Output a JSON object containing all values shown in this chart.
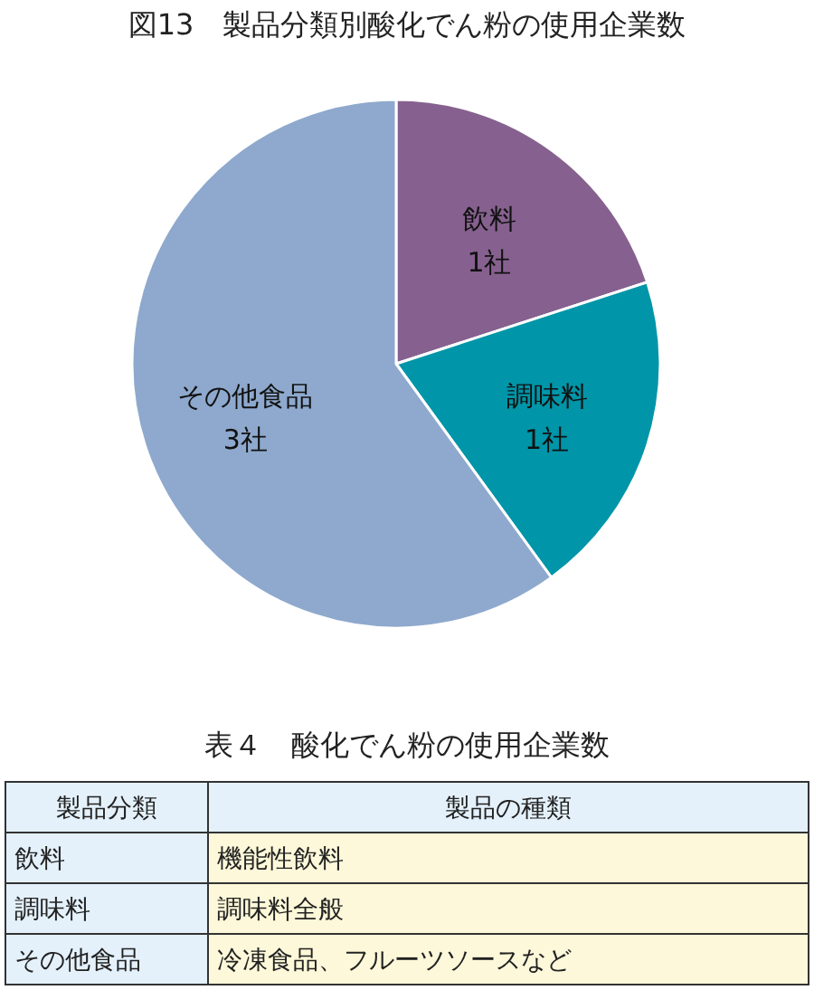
{
  "chart_data": [
    {
      "type": "pie",
      "title": "図13　製品分類別酸化でん粉の使用企業数",
      "categories": [
        "飲料",
        "調味料",
        "その他食品"
      ],
      "values": [
        1,
        1,
        3
      ],
      "value_labels": [
        "1社",
        "1社",
        "3社"
      ],
      "colors": [
        "#86618f",
        "#0095a8",
        "#8ea9cd"
      ]
    },
    {
      "type": "other",
      "title": "表４　酸化でん粉の使用企業数",
      "categories": [
        "製品分類",
        "製品の種類"
      ],
      "y_categories": [
        "飲料",
        "調味料",
        "その他食品"
      ],
      "annotations": [
        "機能性飲料",
        "調味料全般",
        "冷凍食品、フルーツソースなど"
      ]
    }
  ]
}
